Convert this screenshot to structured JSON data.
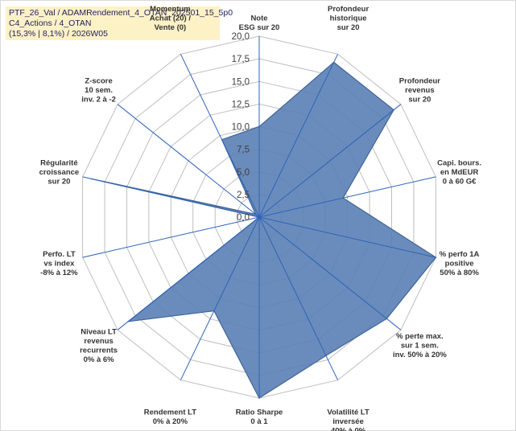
{
  "info": {
    "line1": "PTF_26_Val / ADAMRendement_4_OTAN_202501_15_5p0",
    "line2": "C4_Actions / 4_OTAN",
    "line3": "(15,3% | 8,1%) / 2026W05"
  },
  "chart_data": {
    "type": "radar",
    "title": "",
    "rmin": 0,
    "rmax": 20,
    "ticks": [
      "0,0",
      "2,5",
      "5,0",
      "7,5",
      "10,0",
      "12,5",
      "15,0",
      "17,5",
      "20,0"
    ],
    "axes": [
      {
        "label": [
          "Note",
          "ESG sur 20"
        ],
        "value": 10.0
      },
      {
        "label": [
          "Profondeur",
          "historique",
          "sur 20"
        ],
        "value": 19.0
      },
      {
        "label": [
          "Profondeur",
          "revenus",
          "sur 20"
        ],
        "value": 19.0
      },
      {
        "label": [
          "Capi. bours.",
          "en MdEUR",
          "0 à 60 G€"
        ],
        "value": 9.5
      },
      {
        "label": [
          "% perfo 1A",
          "positive",
          "50% à 80%"
        ],
        "value": 20.0
      },
      {
        "label": [
          "% perte max.",
          "sur 1 sem.",
          "inv. 50% à 20%"
        ],
        "value": 18.0
      },
      {
        "label": [
          "Volatilité LT",
          "inversée",
          "40% à 0%"
        ],
        "value": 17.0
      },
      {
        "label": [
          "Ratio Sharpe",
          "0 à 1"
        ],
        "value": 20.0
      },
      {
        "label": [
          "Rendement LT",
          "0% à 20%"
        ],
        "value": 11.5
      },
      {
        "label": [
          "Niveau LT",
          "revenus",
          "recurrents",
          "0% à 6%"
        ],
        "value": 18.5
      },
      {
        "label": [
          "Perfo. LT",
          "vs index",
          "-8% à 12%"
        ],
        "value": 0.0
      },
      {
        "label": [
          "Régularité",
          "croissance",
          "sur 20"
        ],
        "value": 19.0
      },
      {
        "label": [
          "Z-score",
          "10 sem.",
          "inv. 2 à -2"
        ],
        "value": 0.5
      },
      {
        "label": [
          "Momentum",
          "Achat (20) /",
          "Vente (0)"
        ],
        "value": 9.5
      }
    ],
    "series": [
      {
        "name": "PTF_26_Val",
        "fill": "#5a80b5",
        "stroke": "#3f6497"
      }
    ],
    "colors": {
      "grid": "#bfbfbf",
      "spoke": "#2e63b8",
      "label": "#333333",
      "momentum_label": "#c9b98a"
    }
  }
}
